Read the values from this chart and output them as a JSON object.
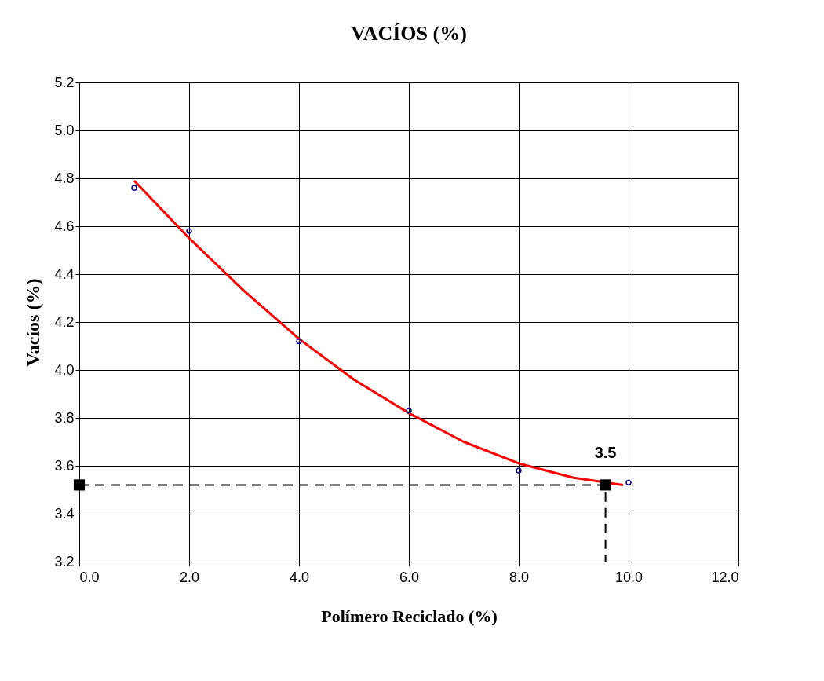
{
  "chart_data": {
    "type": "scatter",
    "title": "VACÍOS (%)",
    "xlabel": "Polímero Reciclado (%)",
    "ylabel": "Vacíos (%)",
    "xlim": [
      0,
      12
    ],
    "xticks": [
      {
        "value": 0,
        "label": "0.0"
      },
      {
        "value": 2,
        "label": "2.0"
      },
      {
        "value": 4,
        "label": "4.0"
      },
      {
        "value": 6,
        "label": "6.0"
      },
      {
        "value": 8,
        "label": "8.0"
      },
      {
        "value": 10,
        "label": "10.0"
      },
      {
        "value": 12,
        "label": "12.0"
      }
    ],
    "ylim": [
      3.2,
      5.2
    ],
    "yticks": [
      {
        "value": 3.2,
        "label": "3.2"
      },
      {
        "value": 3.4,
        "label": "3.4"
      },
      {
        "value": 3.6,
        "label": "3.6"
      },
      {
        "value": 3.8,
        "label": "3.8"
      },
      {
        "value": 4.0,
        "label": "4.0"
      },
      {
        "value": 4.2,
        "label": "4.2"
      },
      {
        "value": 4.4,
        "label": "4.4"
      },
      {
        "value": 4.6,
        "label": "4.6"
      },
      {
        "value": 4.8,
        "label": "4.8"
      },
      {
        "value": 5.0,
        "label": "5.0"
      },
      {
        "value": 5.2,
        "label": "5.2"
      }
    ],
    "grid": true,
    "legend": false,
    "series": [
      {
        "type": "line",
        "color": "#ff0000",
        "marker": "none",
        "line_style": "solid",
        "x": [
          1,
          2,
          3,
          4,
          5,
          6,
          7,
          8,
          9,
          9.9
        ],
        "values": [
          4.79,
          4.55,
          4.33,
          4.13,
          3.96,
          3.82,
          3.7,
          3.61,
          3.55,
          3.52
        ]
      },
      {
        "color": "#000099",
        "marker": "circle",
        "x": [
          1,
          2,
          4,
          6,
          8,
          10
        ],
        "values": [
          4.76,
          4.58,
          4.12,
          3.83,
          3.58,
          3.53
        ]
      },
      {
        "type": "line",
        "color": "#000000",
        "marker": "none",
        "line_style": "dashed",
        "x": [
          0,
          9.58,
          9.58
        ],
        "values": [
          3.52,
          3.52,
          3.2
        ]
      },
      {
        "type": "scatter",
        "color": "#000000",
        "marker": "square",
        "x": [
          0,
          9.58
        ],
        "values": [
          3.52,
          3.52
        ]
      }
    ],
    "annotations": [
      {
        "text": "3.5",
        "x": 9.58,
        "y": 3.52
      }
    ]
  }
}
